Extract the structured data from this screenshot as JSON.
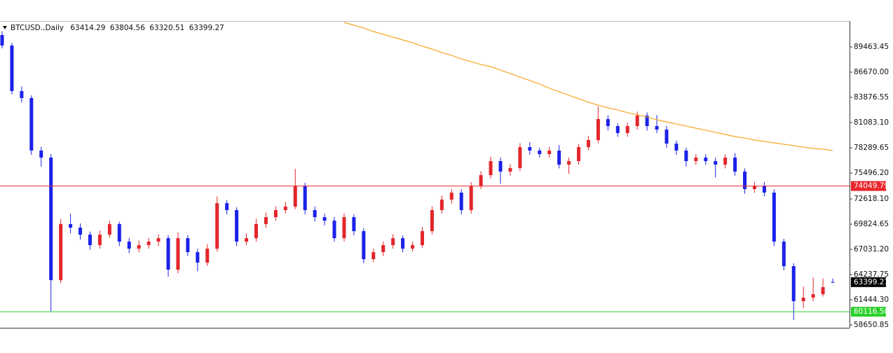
{
  "chart_data": {
    "type": "candlestick",
    "title": "BTCUSD.,Daily",
    "up_color": "#e3262b",
    "down_color": "#1b22e8",
    "open": [
      90780,
      89620,
      84570,
      83800,
      77980,
      77200,
      63620,
      69830,
      69440,
      68660,
      67500,
      68660,
      69830,
      67890,
      67110,
      67500,
      67890,
      68270,
      64780,
      68270,
      66720,
      65560,
      67110,
      72150,
      71380,
      67890,
      68270,
      69830,
      70600,
      71380,
      71770,
      74090,
      71380,
      70600,
      70210,
      68270,
      70600,
      69050,
      65940,
      66720,
      67500,
      68270,
      67110,
      67500,
      69050,
      71380,
      72540,
      73320,
      71380,
      74090,
      75260,
      76810,
      75650,
      76040,
      78360,
      77980,
      77590,
      77980,
      76420,
      76810,
      78360,
      79140,
      81470,
      80690,
      79920,
      80690,
      81860,
      80690,
      80300,
      78750,
      77980,
      76810,
      77200,
      76810,
      76420,
      77200,
      75650,
      73710,
      74090,
      73320,
      67890,
      65170,
      61290,
      61680,
      62060,
      63414.29
    ],
    "high": [
      91200,
      89900,
      85100,
      84100,
      78400,
      77600,
      70400,
      71000,
      69900,
      69000,
      69100,
      70200,
      70100,
      68300,
      68000,
      68300,
      68700,
      68600,
      68900,
      68600,
      67100,
      67600,
      72900,
      72500,
      71700,
      68800,
      70400,
      71100,
      71800,
      72300,
      75960,
      74400,
      71800,
      71000,
      70600,
      71000,
      70900,
      69400,
      67100,
      67900,
      68700,
      68600,
      67900,
      69500,
      71800,
      73000,
      73700,
      73700,
      74500,
      75700,
      77300,
      77200,
      76500,
      78800,
      78900,
      78300,
      78400,
      78600,
      77200,
      78700,
      79600,
      82860,
      81900,
      81000,
      81100,
      82300,
      82200,
      81900,
      80700,
      79100,
      78300,
      77600,
      77600,
      77200,
      77600,
      77700,
      76000,
      74500,
      74500,
      73700,
      68200,
      65500,
      62900,
      63900,
      63800,
      63804.56
    ],
    "low": [
      89300,
      84200,
      83300,
      77500,
      76200,
      60120,
      63300,
      68800,
      68100,
      67000,
      67100,
      68300,
      67400,
      66600,
      66700,
      67100,
      67400,
      64000,
      64400,
      66300,
      64600,
      65200,
      66800,
      70900,
      67400,
      67500,
      67900,
      69400,
      70200,
      71000,
      71500,
      70900,
      70100,
      69700,
      67900,
      67900,
      68600,
      65500,
      65600,
      66300,
      67100,
      66700,
      66800,
      67200,
      68700,
      71000,
      72100,
      70900,
      71000,
      73700,
      74900,
      74300,
      75200,
      75700,
      77500,
      77200,
      77200,
      76000,
      75400,
      76400,
      78000,
      78800,
      80200,
      79500,
      79500,
      80300,
      80200,
      79900,
      78300,
      77500,
      76200,
      76400,
      76400,
      75000,
      76000,
      75200,
      73200,
      73300,
      72900,
      67400,
      64700,
      59190,
      60500,
      61300,
      61800,
      63320.51
    ],
    "close": [
      89620,
      84570,
      83800,
      77980,
      77200,
      63620,
      69830,
      69440,
      68660,
      67500,
      68660,
      69830,
      67890,
      67110,
      67500,
      67890,
      68270,
      64780,
      68270,
      66720,
      65560,
      67110,
      72150,
      71380,
      67890,
      68270,
      69830,
      70600,
      71380,
      71770,
      74090,
      71380,
      70600,
      70210,
      68270,
      70600,
      69050,
      65940,
      66720,
      67500,
      68270,
      67110,
      67500,
      69050,
      71380,
      72540,
      73320,
      71380,
      74090,
      75260,
      76810,
      75650,
      76040,
      78360,
      77980,
      77590,
      77980,
      76420,
      76810,
      78360,
      79140,
      81470,
      80690,
      79920,
      80690,
      81860,
      80690,
      80300,
      78750,
      77980,
      76810,
      77200,
      76810,
      76420,
      77200,
      75650,
      73710,
      74090,
      73320,
      67890,
      65170,
      61290,
      61680,
      62060,
      62840,
      63399.27
    ],
    "moving_average": {
      "color": "#f5a623",
      "values": [
        null,
        null,
        null,
        null,
        null,
        null,
        null,
        null,
        null,
        null,
        null,
        null,
        null,
        null,
        null,
        null,
        null,
        null,
        null,
        null,
        null,
        null,
        null,
        null,
        null,
        null,
        null,
        null,
        null,
        null,
        null,
        null,
        null,
        null,
        null,
        92180,
        91870,
        91560,
        91170,
        90860,
        90550,
        90240,
        89930,
        89540,
        89230,
        88840,
        88530,
        88140,
        87830,
        87520,
        87290,
        86900,
        86510,
        86120,
        85740,
        85350,
        84880,
        84500,
        84110,
        83720,
        83330,
        83020,
        82710,
        82480,
        82170,
        81940,
        81710,
        81390,
        81160,
        80930,
        80700,
        80460,
        80230,
        80000,
        79760,
        79530,
        79370,
        79140,
        78990,
        78830,
        78680,
        78520,
        78360,
        78210,
        78130,
        77980
      ]
    },
    "hlines": [
      {
        "value": 74049.79,
        "color": "#e8262b"
      },
      {
        "value": 60116.5,
        "label": "60116.50",
        "color": "#2bd12b"
      }
    ],
    "ylim": [
      58340,
      92335
    ],
    "yticks": [
      89463.45,
      {
        "value": 86670,
        "label": "86670.00"
      },
      83876.55,
      {
        "value": 81083.1,
        "label": "81083.10"
      },
      78289.65,
      {
        "value": 75496.2,
        "label": "75496.20"
      },
      {
        "value": 72618.1,
        "label": "72618.10"
      },
      69824.65,
      {
        "value": 67031.2,
        "label": "67031.20"
      },
      64237.75,
      {
        "value": 61444.3,
        "label": "61444.30"
      },
      58650.85
    ]
  }
}
